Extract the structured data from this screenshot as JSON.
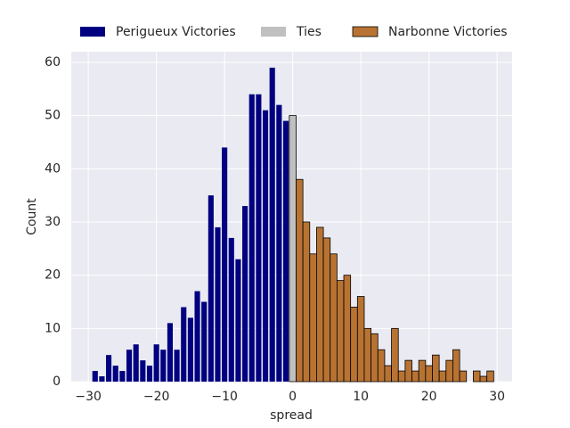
{
  "chart_data": {
    "type": "histogram",
    "xlabel": "spread",
    "ylabel": "Count",
    "xlim": [
      -32.5,
      32.2
    ],
    "ylim": [
      0,
      62
    ],
    "xticks": [
      {
        "value": -30,
        "label": "−30"
      },
      {
        "value": -20,
        "label": "−20"
      },
      {
        "value": -10,
        "label": "−10"
      },
      0,
      10,
      20,
      30
    ],
    "yticks": [
      0,
      10,
      20,
      30,
      40,
      50,
      60
    ],
    "grid": true,
    "legend": "top",
    "series": [
      {
        "name": "Perigueux Victories",
        "color": "#000080",
        "bins": [
          -29.5,
          -28.5,
          -27.5,
          -26.5,
          -25.5,
          -24.5,
          -23.5,
          -22.5,
          -21.5,
          -20.5,
          -19.5,
          -18.5,
          -17.5,
          -16.5,
          -15.5,
          -14.5,
          -13.5,
          -12.5,
          -11.5,
          -10.5,
          -9.5,
          -8.5,
          -7.5,
          -6.5,
          -5.5,
          -4.5,
          -3.5,
          -2.5,
          -1.5,
          -0.5
        ],
        "counts": [
          2,
          1,
          5,
          3,
          2,
          6,
          7,
          4,
          3,
          7,
          6,
          11,
          6,
          14,
          12,
          17,
          15,
          35,
          29,
          44,
          27,
          23,
          33,
          54,
          54,
          51,
          59,
          52,
          49
        ]
      },
      {
        "name": "Ties",
        "color": "#c0c0c0",
        "bins": [
          -0.5,
          0.5
        ],
        "counts": [
          50
        ]
      },
      {
        "name": "Narbonne Victories",
        "color": "#b87333",
        "bins": [
          0.5,
          1.5,
          2.5,
          3.5,
          4.5,
          5.5,
          6.5,
          7.5,
          8.5,
          9.5,
          10.5,
          11.5,
          12.5,
          13.5,
          14.5,
          15.5,
          16.5,
          17.5,
          18.5,
          19.5,
          20.5,
          21.5,
          22.5,
          23.5,
          24.5,
          25.5,
          26.5,
          27.5,
          28.5,
          29.5
        ],
        "counts": [
          38,
          30,
          24,
          29,
          27,
          24,
          19,
          20,
          14,
          16,
          10,
          9,
          6,
          3,
          10,
          2,
          4,
          2,
          4,
          3,
          5,
          2,
          4,
          6,
          2,
          0,
          2,
          1,
          2
        ]
      }
    ]
  }
}
